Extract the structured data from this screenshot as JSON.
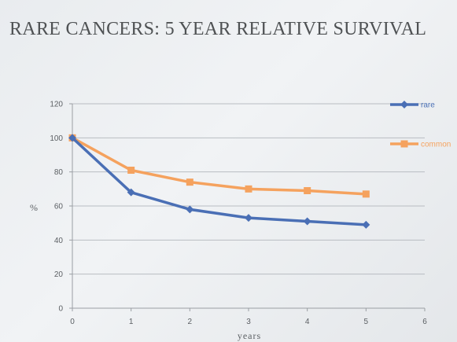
{
  "chart_data": {
    "type": "line",
    "title": "RARE CANCERS: 5 YEAR RELATIVE SURVIVAL",
    "xlabel": "years",
    "ylabel": "%",
    "x": [
      0,
      1,
      2,
      3,
      4,
      5
    ],
    "x_ticks": [
      "0",
      "1",
      "2",
      "3",
      "4",
      "5",
      "6"
    ],
    "y_ticks": [
      "0",
      "20",
      "40",
      "60",
      "80",
      "100",
      "120"
    ],
    "xlim": [
      0,
      6
    ],
    "ylim": [
      0,
      120
    ],
    "grid": "horizontal",
    "legend_position": "right",
    "series": [
      {
        "name": "rare",
        "color": "#4a6fb5",
        "marker": "diamond",
        "values": [
          100,
          68,
          58,
          53,
          51,
          49
        ]
      },
      {
        "name": "common",
        "color": "#f5a25e",
        "marker": "square",
        "values": [
          100,
          81,
          74,
          70,
          69,
          67
        ]
      }
    ]
  }
}
